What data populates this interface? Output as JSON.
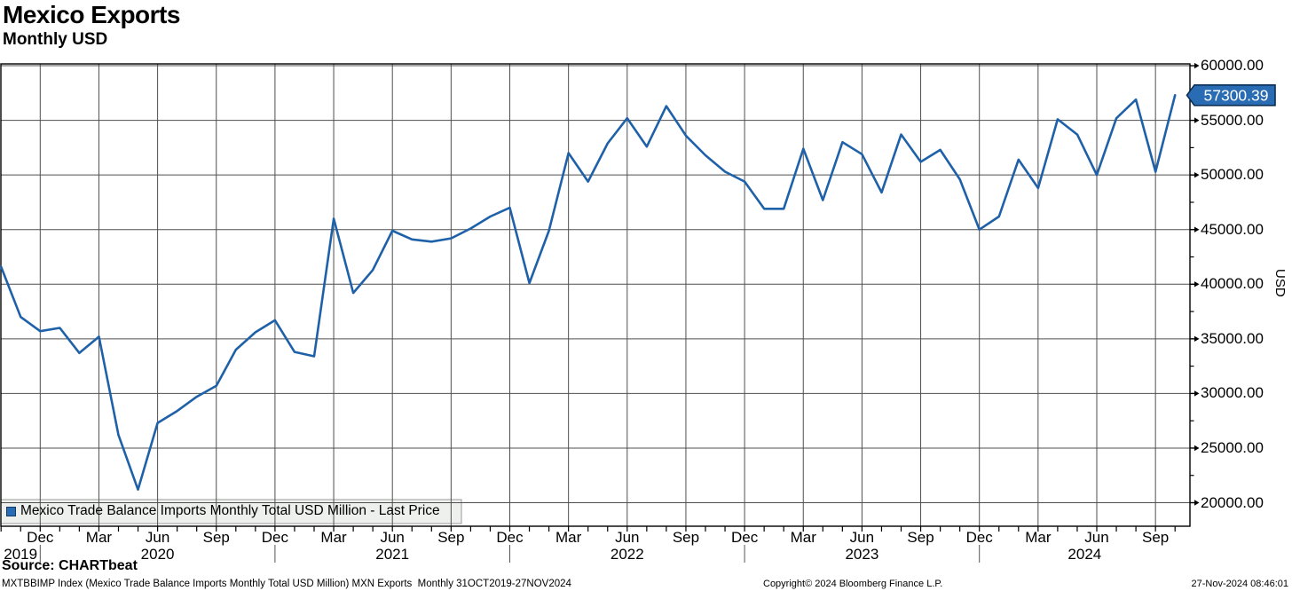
{
  "header": {
    "title": "Mexico Exports",
    "subtitle": "Monthly USD"
  },
  "legend": {
    "label": "Mexico Trade Balance Imports Monthly Total USD Million - Last Price"
  },
  "right_axis": {
    "title": "USD",
    "last_price_label": "57300.39"
  },
  "footer": {
    "source": "Source: CHARTbeat",
    "description": "MXTBBIMP Index (Mexico Trade Balance Imports Monthly Total USD Million) MXN Exports  Monthly 31OCT2019-27NOV2024",
    "copyright": "Copyright© 2024 Bloomberg Finance L.P.",
    "datetime": "27-Nov-2024 08:46:01"
  },
  "colors": {
    "line": "#1f61a8",
    "badge_bg": "#2a6cb3",
    "badge_border": "#0c2d52",
    "grid": "#4f4f4f",
    "axis": "#000000",
    "legend_bg": "#eef0ee",
    "legend_border": "#9a9a9a"
  },
  "chart_data": {
    "type": "line",
    "title": "Mexico Exports",
    "subtitle": "Monthly USD",
    "legend_entry": "Mexico Trade Balance Imports Monthly Total USD Million - Last Price",
    "legend_position": "bottom-left",
    "grid": true,
    "last_price": 57300.39,
    "series": [
      {
        "name": "Mexico Trade Balance Imports Monthly Total USD Million - Last Price",
        "color": "#1f61a8",
        "frequency": "monthly",
        "x_start": "2019-10",
        "x_end": "2024-10",
        "values": [
          41600,
          37000,
          35700,
          36000,
          33700,
          35200,
          26200,
          21200,
          27300,
          28400,
          29700,
          30700,
          34000,
          35600,
          36700,
          33800,
          33400,
          46000,
          39200,
          41300,
          44900,
          44100,
          43900,
          44200,
          45100,
          46200,
          47000,
          40100,
          44900,
          52000,
          49400,
          52900,
          55200,
          52600,
          56300,
          53600,
          51800,
          50300,
          49400,
          46900,
          46900,
          52400,
          47700,
          53000,
          51900,
          48400,
          53700,
          51200,
          52300,
          49600,
          45000,
          46200,
          51400,
          48800,
          55100,
          53700,
          50000,
          55200,
          56900,
          50300,
          57300.39
        ]
      }
    ],
    "y_axis": {
      "label": "USD",
      "side": "right",
      "tick_min": 20000,
      "tick_max": 60000,
      "tick_step": 5000,
      "minor_step": 2500,
      "tick_labels": [
        "60000.00",
        "55000.00",
        "50000.00",
        "45000.00",
        "40000.00",
        "35000.00",
        "30000.00",
        "25000.00",
        "20000.00"
      ]
    },
    "x_axis": {
      "quarter_label_cycle": [
        "Dec",
        "Mar",
        "Jun",
        "Sep"
      ],
      "first_quarter_month_index": 2,
      "year_labels": [
        "2019",
        "2020",
        "2021",
        "2022",
        "2023",
        "2024"
      ]
    }
  }
}
